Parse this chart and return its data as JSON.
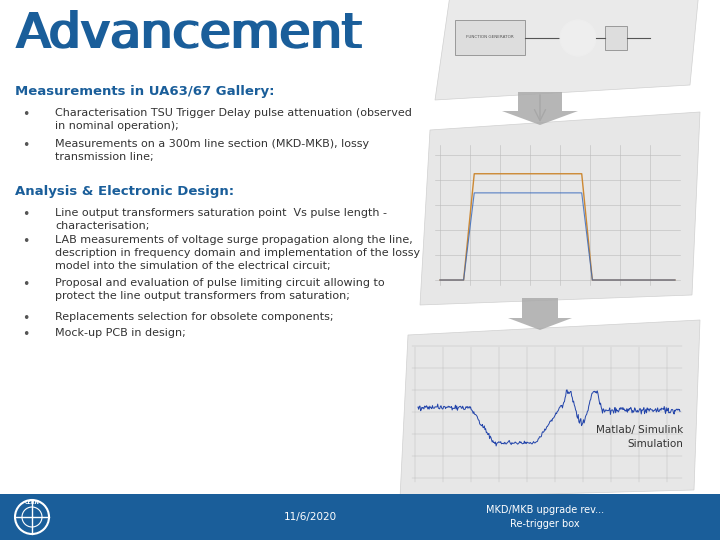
{
  "title": "Advancement",
  "title_color": "#1A5E9A",
  "title_fontsize": 36,
  "bg_color": "#FFFFFF",
  "footer_color": "#1A5E9A",
  "footer_text_color": "#FFFFFF",
  "footer_date": "11/6/2020",
  "footer_right": "MKD/MKB upgrade rev...\nRe-trigger box",
  "section1_title": "Measurements in UA63/67 Gallery:",
  "section1_color": "#1A5E9A",
  "section1_fontsize": 9.5,
  "section1_bullets": [
    "Characterisation TSU Trigger Delay pulse attenuation (observed\nin nominal operation);",
    "Measurements on a 300m line section (MKD-MKB), lossy\ntransmission line;"
  ],
  "section2_title": "Analysis & Electronic Design:",
  "section2_color": "#1A5E9A",
  "section2_fontsize": 9.5,
  "section2_bullets": [
    "Line output transformers saturation point  Vs pulse length -\ncharacterisation;",
    "LAB measurements of voltage surge propagation along the line,\ndescription in frequency domain and implementation of the lossy\nmodel into the simulation of the electrical circuit;",
    "Proposal and evaluation of pulse limiting circuit allowing to\nprotect the line output transformers from saturation;",
    "Replacements selection for obsolete components;",
    "Mock-up PCB in design;"
  ],
  "bullet_color": "#333333",
  "bullet_fontsize": 8,
  "matlab_label": "Matlab/ Simulink\nSimulation",
  "matlab_label_color": "#333333",
  "matlab_label_fontsize": 7.5,
  "arrow_color": "#999999",
  "diag_color": "#D8D8D8",
  "diag_edge_color": "#BBBBBB"
}
